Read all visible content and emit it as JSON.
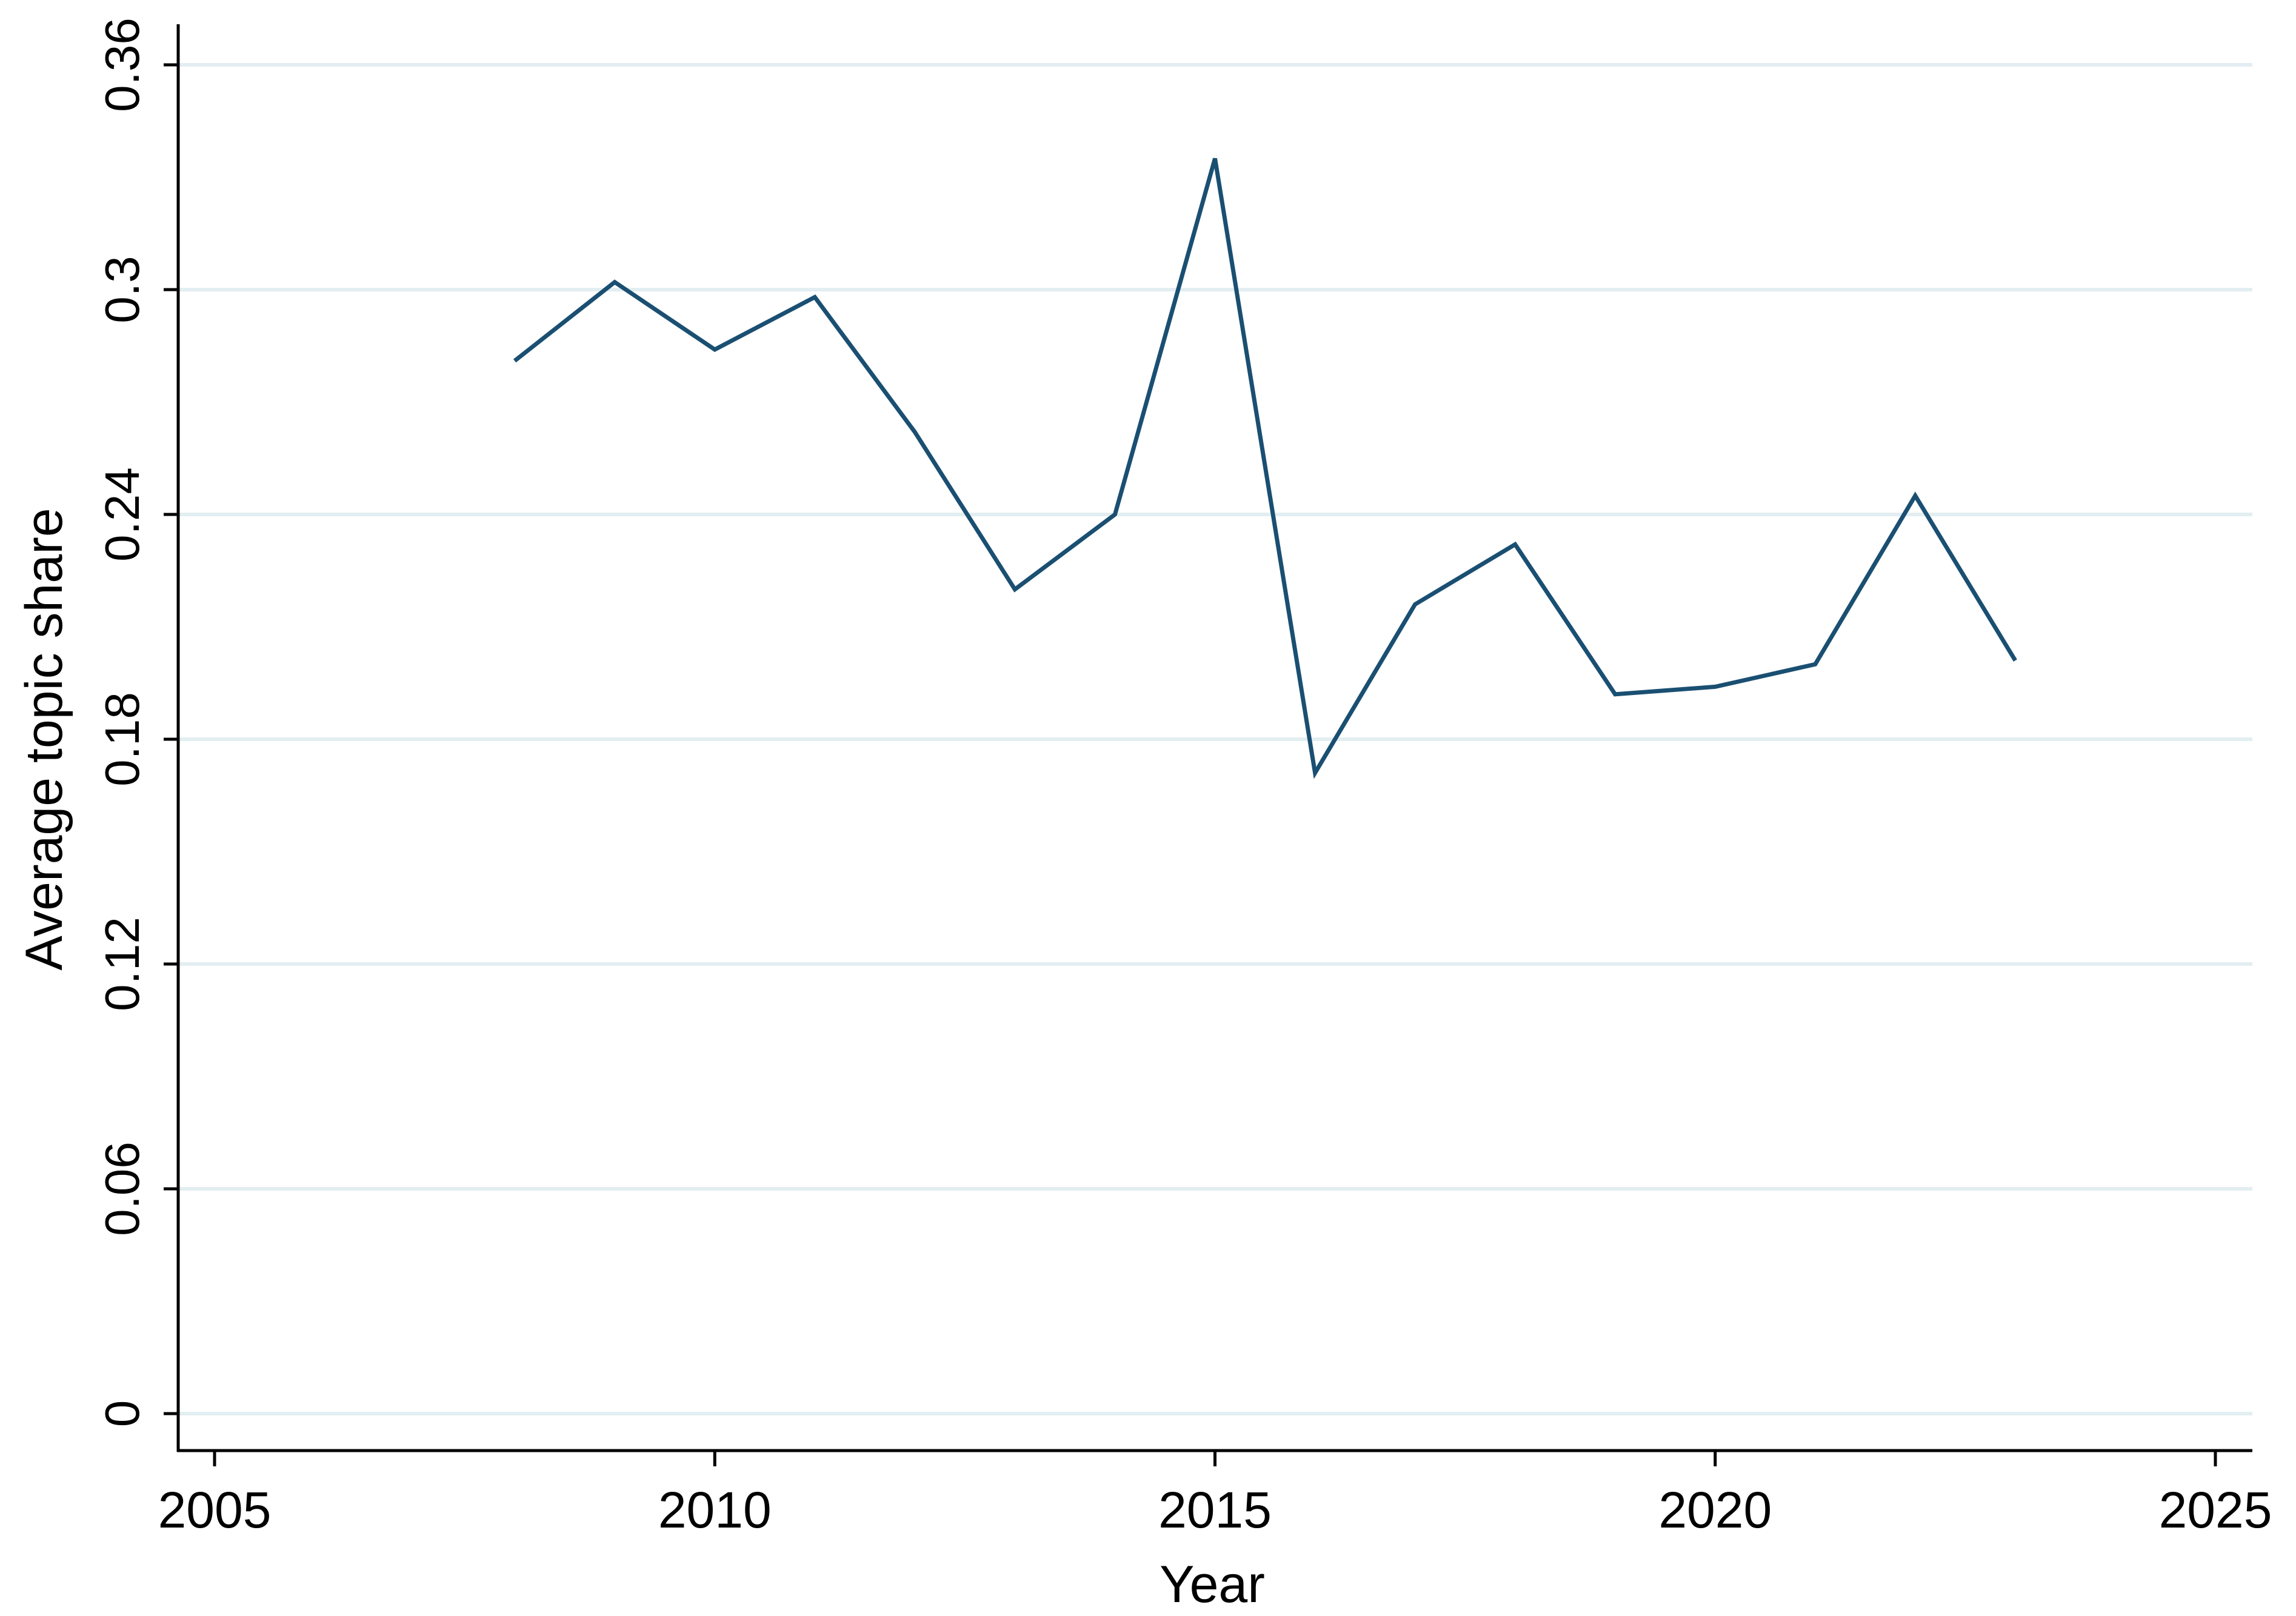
{
  "chart_data": {
    "type": "line",
    "xlabel": "Year",
    "ylabel": "Average topic share",
    "xlim": [
      2005,
      2025
    ],
    "ylim": [
      0,
      0.36
    ],
    "xticks": [
      2005,
      2010,
      2015,
      2020,
      2025
    ],
    "xtick_labels": [
      "2005",
      "2010",
      "2015",
      "2020",
      "2025"
    ],
    "yticks": [
      0,
      0.06,
      0.12,
      0.18,
      0.24,
      0.3,
      0.36
    ],
    "ytick_labels": [
      "0",
      "0.06",
      "0.12",
      "0.18",
      "0.24",
      "0.3",
      "0.36"
    ],
    "grid": true,
    "line_color": "#1a4f72",
    "grid_color": "#e3eef2",
    "series": [
      {
        "x": [
          2008,
          2009,
          2010,
          2011,
          2012,
          2013,
          2014,
          2015,
          2016,
          2017,
          2018,
          2019,
          2020,
          2021,
          2022,
          2023
        ],
        "values": [
          0.281,
          0.302,
          0.284,
          0.298,
          0.262,
          0.22,
          0.24,
          0.335,
          0.171,
          0.216,
          0.232,
          0.192,
          0.194,
          0.2,
          0.245,
          0.201
        ]
      }
    ]
  }
}
